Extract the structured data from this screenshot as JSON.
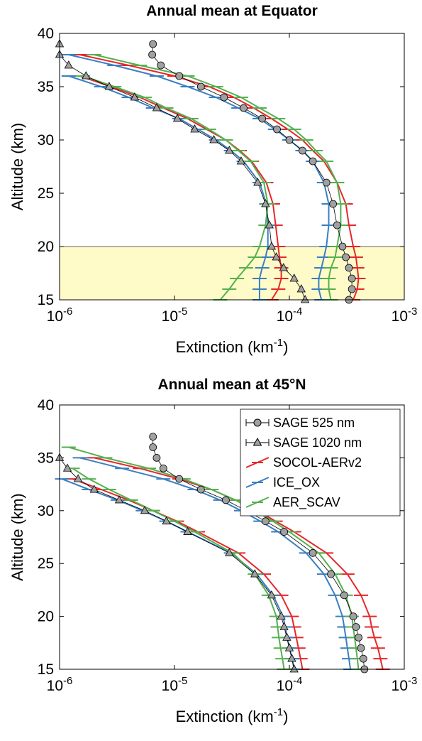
{
  "chart_data": [
    {
      "type": "line",
      "title": "Annual mean at Equator",
      "xlabel": "Extinction (km",
      "xlabel_sup": "-1",
      "xlabel_end": ")",
      "ylabel": "Altitude (km)",
      "xscale": "log",
      "xlim": [
        1e-06,
        0.001
      ],
      "ylim": [
        15,
        40
      ],
      "xticks": [
        {
          "value": 1e-06,
          "label": "10",
          "exponent": "-6"
        },
        {
          "value": 1e-05,
          "label": "10",
          "exponent": "-5"
        },
        {
          "value": 0.0001,
          "label": "10",
          "exponent": "-4"
        },
        {
          "value": 0.001,
          "label": "10",
          "exponent": "-3"
        }
      ],
      "yticks": [
        15,
        20,
        25,
        30,
        35,
        40
      ],
      "band": [
        15,
        20
      ],
      "band_color": "#fffbc8",
      "y": [
        15,
        16,
        17,
        18,
        19,
        20,
        22,
        24,
        26,
        28,
        29,
        30,
        31,
        32,
        33,
        34,
        35,
        36,
        37,
        38,
        39
      ],
      "series": [
        {
          "color": "#a0a0a0",
          "marker": "circle",
          "values": [
            0.00033,
            0.00035,
            0.00035,
            0.00033,
            0.00031,
            0.00029,
            0.00026,
            0.00024,
            0.00021,
            0.00016,
            0.00013,
            0.0001,
            7.8e-05,
            5.8e-05,
            4e-05,
            2.7e-05,
            1.7e-05,
            1.1e-05,
            7.6e-06,
            6.4e-06,
            6.5e-06
          ]
        },
        {
          "color": "#a0a0a0",
          "marker": "triangle",
          "values": [
            0.000137,
            0.000127,
            0.00011,
            8.9e-05,
            7.7e-05,
            7e-05,
            6.7e-05,
            6.2e-05,
            5.3e-05,
            3.8e-05,
            3e-05,
            2.2e-05,
            1.5e-05,
            1.06e-05,
            7e-06,
            4.5e-06,
            2.7e-06,
            1.7e-06,
            1.2e-06,
            1e-06,
            1e-06
          ]
        },
        {
          "color": "#e8262a",
          "marker": "dash",
          "values": [
            0.00036,
            0.00039,
            0.0004,
            0.00039,
            0.00038,
            0.00036,
            0.00033,
            0.00031,
            0.00026,
            0.0002,
            0.00016,
            0.00013,
            9.7e-05,
            7e-05,
            4.9e-05,
            3.3e-05,
            2e-05,
            1e-05,
            4e-06,
            1.5e-06,
            null
          ],
          "values_1020": [
            7e-05,
            8e-05,
            8.5e-05,
            8.5e-05,
            8.2e-05,
            8e-05,
            7.6e-05,
            7.2e-05,
            6.3e-05,
            4.7e-05,
            3.7e-05,
            2.8e-05,
            1.9e-05,
            1.3e-05,
            8e-06,
            5e-06,
            2.8e-06,
            1.5e-06,
            null,
            null,
            null
          ]
        },
        {
          "color": "#3a7fc1",
          "marker": "dash",
          "values": [
            0.00019,
            0.00018,
            0.00018,
            0.00019,
            0.0002,
            0.00021,
            0.00022,
            0.00022,
            0.0002,
            0.00016,
            0.00013,
            0.0001,
            7.5e-05,
            5.5e-05,
            3.6e-05,
            2.3e-05,
            1.3e-05,
            7e-06,
            3e-06,
            1.2e-06,
            null
          ],
          "values_1020": [
            5.5e-05,
            5.5e-05,
            5.5e-05,
            5.8e-05,
            6.2e-05,
            6.5e-05,
            6.5e-05,
            6.3e-05,
            5.5e-05,
            4e-05,
            3.1e-05,
            2.3e-05,
            1.6e-05,
            1.1e-05,
            6.5e-06,
            4e-06,
            2.3e-06,
            1.2e-06,
            null,
            null,
            null
          ]
        },
        {
          "color": "#55b04f",
          "marker": "dash",
          "values": [
            0.00023,
            0.00022,
            0.00022,
            0.00023,
            0.00025,
            0.00026,
            0.00028,
            0.00028,
            0.00026,
            0.00021,
            0.00017,
            0.00014,
            0.00011,
            8e-05,
            5.5e-05,
            3.8e-05,
            2.3e-05,
            1.3e-05,
            5e-06,
            2e-06,
            null
          ],
          "values_1020": [
            2.5e-05,
            3e-05,
            3.5e-05,
            4.2e-05,
            5e-05,
            5.5e-05,
            6.2e-05,
            6.5e-05,
            6e-05,
            4.6e-05,
            3.6e-05,
            2.8e-05,
            2e-05,
            1.4e-05,
            8.5e-06,
            5.5e-06,
            3e-06,
            1.6e-06,
            null,
            null,
            null
          ]
        }
      ]
    },
    {
      "type": "line",
      "title": "Annual mean at 45°N",
      "xlabel": "Extinction (km",
      "xlabel_sup": "-1",
      "xlabel_end": ")",
      "ylabel": "Altitude (km)",
      "xscale": "log",
      "xlim": [
        1e-06,
        0.001
      ],
      "ylim": [
        15,
        40
      ],
      "legend": "northeast",
      "xticks": [
        {
          "value": 1e-06,
          "label": "10",
          "exponent": "-6"
        },
        {
          "value": 1e-05,
          "label": "10",
          "exponent": "-5"
        },
        {
          "value": 0.0001,
          "label": "10",
          "exponent": "-4"
        },
        {
          "value": 0.001,
          "label": "10",
          "exponent": "-3"
        }
      ],
      "yticks": [
        15,
        20,
        25,
        30,
        35,
        40
      ],
      "y": [
        15,
        16,
        17,
        18,
        19,
        20,
        22,
        24,
        26,
        28,
        29,
        30,
        31,
        32,
        33,
        34,
        35,
        36,
        37,
        38,
        39
      ],
      "series": [
        {
          "name": "SAGE 525 nm",
          "color": "#a0a0a0",
          "marker": "circle",
          "values": [
            0.00045,
            0.00044,
            0.00042,
            0.0004,
            0.00038,
            0.00036,
            0.0003,
            0.00023,
            0.00016,
            9e-05,
            6.2e-05,
            4.2e-05,
            2.8e-05,
            1.7e-05,
            1.1e-05,
            8e-06,
            7e-06,
            6.5e-06,
            6.5e-06,
            null,
            null
          ]
        },
        {
          "name": "SAGE 1020 nm",
          "color": "#a0a0a0",
          "marker": "triangle",
          "values": [
            0.00011,
            0.000105,
            0.0001,
            9.5e-05,
            9e-05,
            8.5e-05,
            7e-05,
            5e-05,
            3e-05,
            1.3e-05,
            8.5e-06,
            5.5e-06,
            3.3e-06,
            2e-06,
            1.45e-06,
            1.17e-06,
            1e-06,
            null,
            null,
            null,
            null
          ]
        },
        {
          "name": "SOCOL-AERv2",
          "color": "#e8262a",
          "marker": "dash",
          "values": [
            0.00065,
            0.00062,
            0.00059,
            0.00055,
            0.00052,
            0.0005,
            0.00042,
            0.00032,
            0.00021,
            0.00011,
            7.6e-05,
            5.3e-05,
            3.4e-05,
            2.1e-05,
            1.1e-05,
            5e-06,
            2e-06,
            null,
            null,
            null,
            null
          ],
          "values_1020": [
            0.00013,
            0.000125,
            0.00012,
            0.000115,
            0.00011,
            0.000105,
            8.5e-05,
            6e-05,
            3.6e-05,
            1.6e-05,
            1.05e-05,
            6.5e-06,
            4e-06,
            2.3e-06,
            1.3e-06,
            null,
            null,
            null,
            null,
            null,
            null
          ]
        },
        {
          "name": "ICE_OX",
          "color": "#3a7fc1",
          "marker": "dash",
          "values": [
            0.00034,
            0.00033,
            0.00032,
            0.00031,
            0.0003,
            0.00029,
            0.00025,
            0.0002,
            0.00014,
            8e-05,
            5.6e-05,
            3.8e-05,
            2.5e-05,
            1.5e-05,
            8e-06,
            3.5e-06,
            1.5e-06,
            null,
            null,
            null,
            null
          ],
          "values_1020": [
            0.00011,
            0.000106,
            0.0001,
            9.6e-05,
            9.2e-05,
            8.8e-05,
            7.2e-05,
            5.2e-05,
            3.1e-05,
            1.3e-05,
            8.5e-06,
            5.3e-06,
            3.2e-06,
            1.8e-06,
            1.05e-06,
            null,
            null,
            null,
            null,
            null,
            null
          ]
        },
        {
          "name": "AER_SCAV",
          "color": "#55b04f",
          "marker": "dash",
          "values": [
            0.0004,
            0.00039,
            0.00038,
            0.00037,
            0.00036,
            0.00035,
            0.00031,
            0.00025,
            0.00018,
            0.0001,
            7.2e-05,
            5e-05,
            3.4e-05,
            2.1e-05,
            1.2e-05,
            6e-06,
            2.5e-06,
            1.2e-06,
            null,
            null,
            null
          ],
          "values_1020": [
            9e-05,
            8.7e-05,
            8.4e-05,
            8.1e-05,
            7.9e-05,
            7.7e-05,
            6.6e-05,
            5e-05,
            3.2e-05,
            1.5e-05,
            1e-05,
            6.5e-06,
            4.2e-06,
            2.7e-06,
            1.8e-06,
            1.3e-06,
            null,
            null,
            null,
            null,
            null
          ]
        }
      ]
    }
  ]
}
